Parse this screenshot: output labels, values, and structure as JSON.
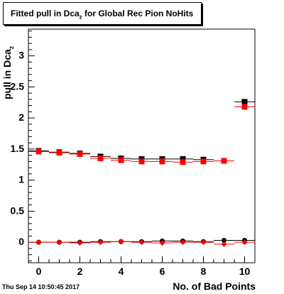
{
  "title": {
    "main": "Fitted pull in Dca",
    "sub": "z",
    "rest": " for Global Rec Pion NoHits"
  },
  "timestamp": "Thu Sep 14 10:50:45 2017",
  "chart_data": {
    "type": "scatter",
    "xlabel": "No. of Bad Points",
    "ylabel": "pull in Dca",
    "ylabel_sub": "z",
    "xlim": [
      -0.5,
      10.5
    ],
    "ylim": [
      -0.33,
      3.43
    ],
    "x_ticks": [
      0,
      2,
      4,
      6,
      8,
      10
    ],
    "y_ticks": [
      0,
      0.5,
      1,
      1.5,
      2,
      2.5,
      3
    ],
    "y_tick_labels": [
      "0",
      "0.5",
      "1",
      "1.5",
      "2",
      "2.5",
      "3"
    ],
    "grid": false,
    "series": [
      {
        "marker": "square",
        "color": "#000000",
        "x": [
          0,
          1,
          2,
          3,
          4,
          5,
          6,
          7,
          8,
          9,
          10
        ],
        "y": [
          1.47,
          1.45,
          1.43,
          1.38,
          1.35,
          1.34,
          1.34,
          1.34,
          1.33,
          1.31,
          2.26
        ]
      },
      {
        "marker": "square",
        "color": "#ff0000",
        "x": [
          0,
          1,
          2,
          3,
          4,
          5,
          6,
          7,
          8,
          9,
          10
        ],
        "y": [
          1.46,
          1.44,
          1.42,
          1.35,
          1.32,
          1.3,
          1.3,
          1.29,
          1.3,
          1.31,
          2.18
        ]
      },
      {
        "marker": "circle",
        "color": "#000000",
        "x": [
          0,
          1,
          2,
          3,
          4,
          5,
          6,
          7,
          8,
          9,
          10
        ],
        "y": [
          0.0,
          0.0,
          0.0,
          0.01,
          0.01,
          0.01,
          0.02,
          0.02,
          0.01,
          0.03,
          0.03
        ]
      },
      {
        "marker": "diamond",
        "color": "#ff0000",
        "x": [
          0,
          1,
          2,
          3,
          4,
          5,
          6,
          7,
          8,
          9,
          10
        ],
        "y": [
          0.0,
          0.0,
          -0.01,
          0.0,
          0.01,
          0.0,
          -0.01,
          0.0,
          0.0,
          -0.03,
          0.0
        ]
      }
    ]
  }
}
